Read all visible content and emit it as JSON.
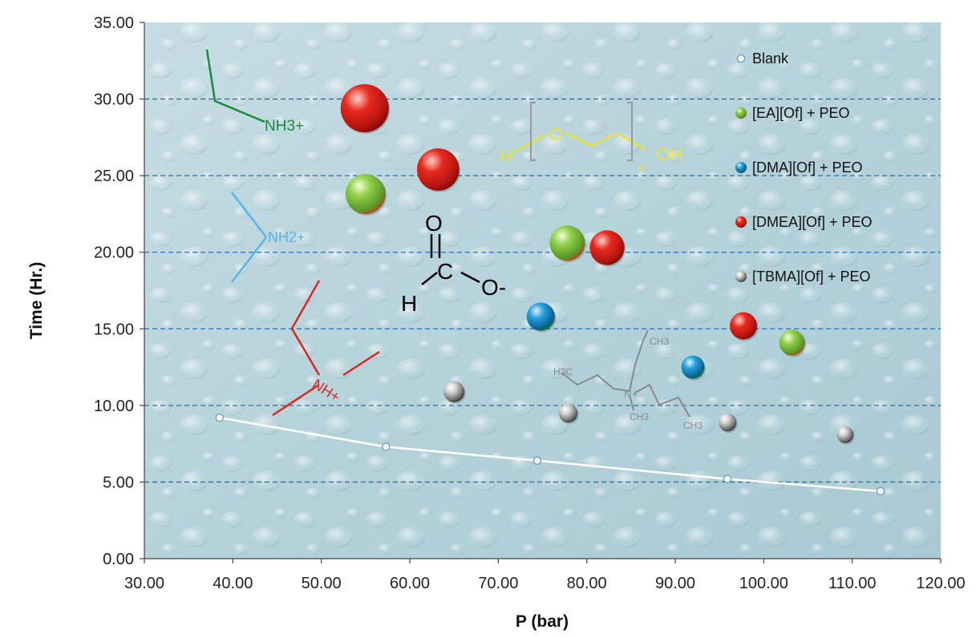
{
  "chart_data": {
    "type": "scatter",
    "xlabel": "P (bar)",
    "ylabel": "Time (Hr.)",
    "xlim": [
      30,
      120
    ],
    "ylim": [
      0,
      35
    ],
    "x_ticks": [
      "30.00",
      "40.00",
      "50.00",
      "60.00",
      "70.00",
      "80.00",
      "90.00",
      "100.00",
      "110.00",
      "120.00"
    ],
    "y_ticks": [
      "0.00",
      "5.00",
      "10.00",
      "15.00",
      "20.00",
      "25.00",
      "30.00",
      "35.00"
    ],
    "grid": "horizontal dashed",
    "legend_position": "right",
    "series": [
      {
        "name": "Blank",
        "marker": "open-circle",
        "line": true,
        "color": "#ffffff",
        "points": [
          [
            38.5,
            9.2
          ],
          [
            57.3,
            7.3
          ],
          [
            74.4,
            6.4
          ],
          [
            95.9,
            5.2
          ],
          [
            113.2,
            4.4
          ]
        ]
      },
      {
        "name": "[EA][Of] + PEO",
        "marker": "sphere",
        "color": "#7dc142",
        "points": [
          [
            55.0,
            23.8
          ],
          [
            77.8,
            20.6
          ],
          [
            103.2,
            14.1
          ]
        ]
      },
      {
        "name": "[DMA][Of] + PEO",
        "marker": "sphere",
        "color": "#1c8fcf",
        "points": [
          [
            74.8,
            15.8
          ],
          [
            92.0,
            12.5
          ]
        ]
      },
      {
        "name": "[DMEA][Of] + PEO",
        "marker": "sphere",
        "color": "#e1251b",
        "points": [
          [
            54.9,
            29.4
          ],
          [
            63.2,
            25.4
          ],
          [
            82.3,
            20.3
          ],
          [
            97.7,
            15.2
          ]
        ]
      },
      {
        "name": "[TBMA][Of] +  PEO",
        "marker": "sphere",
        "color": "#a6a6a6",
        "points": [
          [
            65.0,
            10.9
          ],
          [
            77.9,
            9.5
          ],
          [
            95.9,
            8.9
          ],
          [
            109.2,
            8.1
          ]
        ]
      }
    ],
    "annotations": {
      "ea_amine": "NH3+",
      "dma_amine": "NH2+",
      "dmea_amine": "NH+",
      "formate": {
        "h": "H",
        "c": "C",
        "o_top": "O",
        "o_right": "O-"
      },
      "peo": {
        "h": "H",
        "o": "O",
        "oh": "OH",
        "n": "n"
      },
      "tbma": {
        "ch3": "CH3",
        "h3c": "H3C",
        "n": "N+"
      }
    }
  }
}
